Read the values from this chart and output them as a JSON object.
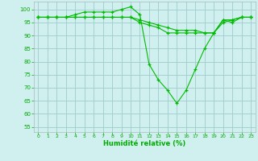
{
  "xlabel": "Humidité relative (%)",
  "background_color": "#d0f0f0",
  "grid_color": "#a0cccc",
  "line_color": "#00bb00",
  "xlim": [
    -0.5,
    23.5
  ],
  "ylim": [
    53,
    103
  ],
  "yticks": [
    55,
    60,
    65,
    70,
    75,
    80,
    85,
    90,
    95,
    100
  ],
  "xticks": [
    0,
    1,
    2,
    3,
    4,
    5,
    6,
    7,
    8,
    9,
    10,
    11,
    12,
    13,
    14,
    15,
    16,
    17,
    18,
    19,
    20,
    21,
    22,
    23
  ],
  "line1_y": [
    97,
    97,
    97,
    97,
    98,
    99,
    99,
    99,
    99,
    100,
    101,
    98,
    79,
    73,
    69,
    64,
    69,
    77,
    85,
    91,
    96,
    95,
    97,
    97
  ],
  "line2_y": [
    97,
    97,
    97,
    97,
    97,
    97,
    97,
    97,
    97,
    97,
    97,
    95,
    94,
    93,
    91,
    91,
    91,
    91,
    91,
    91,
    95,
    96,
    97,
    97
  ],
  "line3_y": [
    97,
    97,
    97,
    97,
    97,
    97,
    97,
    97,
    97,
    97,
    97,
    96,
    95,
    94,
    93,
    92,
    92,
    92,
    91,
    91,
    96,
    96,
    97,
    97
  ]
}
